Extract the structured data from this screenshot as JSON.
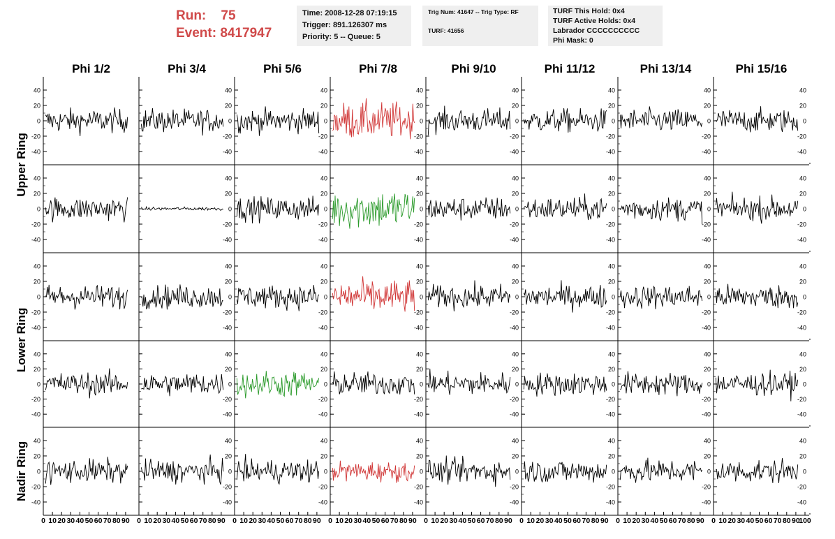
{
  "header": {
    "run_label": "Run:",
    "run_value": "75",
    "event_label": "Event:",
    "event_value": "8417947"
  },
  "info_time": {
    "time": "Time: 2008-12-28 07:19:15",
    "trigger": "Trigger: 891.126307 ms",
    "priority": "Priority: 5 -- Queue: 5"
  },
  "info_trig": {
    "trig_num": "Trig Num: 41647 -- Trig Type: RF",
    "turf": "TURF: 41656"
  },
  "info_turf": {
    "this_hold": "TURF This Hold: 0x4",
    "active_holds": "TURF Active Holds: 0x4",
    "labrador": "Labrador CCCCCCCCCC",
    "phi_mask": "Phi Mask: 0"
  },
  "chart_data": {
    "type": "line",
    "columns": [
      "Phi 1/2",
      "Phi 3/4",
      "Phi 5/6",
      "Phi 7/8",
      "Phi 9/10",
      "Phi 11/12",
      "Phi 13/14",
      "Phi 15/16"
    ],
    "rows": [
      "Upper Ring",
      "Lower Ring",
      "Nadir Ring"
    ],
    "ylim": [
      -50,
      50
    ],
    "yticks": [
      "-40",
      "-20",
      "0",
      "20",
      "40"
    ],
    "xlim": [
      0,
      100
    ],
    "xticks": [
      "0",
      "10",
      "20",
      "30",
      "40",
      "50",
      "60",
      "70",
      "80",
      "90",
      "100"
    ],
    "samples_per_trace": 96,
    "colors": {
      "normal": "#000000",
      "highlight_red": "#d03535",
      "highlight_green": "#2a9a2a"
    },
    "panels": [
      {
        "row": 0,
        "col": 3,
        "color": "highlight_red",
        "amplitude": 22
      },
      {
        "row": 1,
        "col": 3,
        "color": "highlight_green",
        "amplitude": 24
      },
      {
        "row": 1,
        "col": 1,
        "color": "normal",
        "amplitude": 2
      },
      {
        "row": 2,
        "col": 3,
        "color": "highlight_red",
        "amplitude": 20
      },
      {
        "row": 3,
        "col": 2,
        "color": "highlight_green",
        "amplitude": 16
      },
      {
        "row": 4,
        "col": 3,
        "color": "highlight_red",
        "amplitude": 12
      }
    ],
    "default_amplitude": 14
  }
}
